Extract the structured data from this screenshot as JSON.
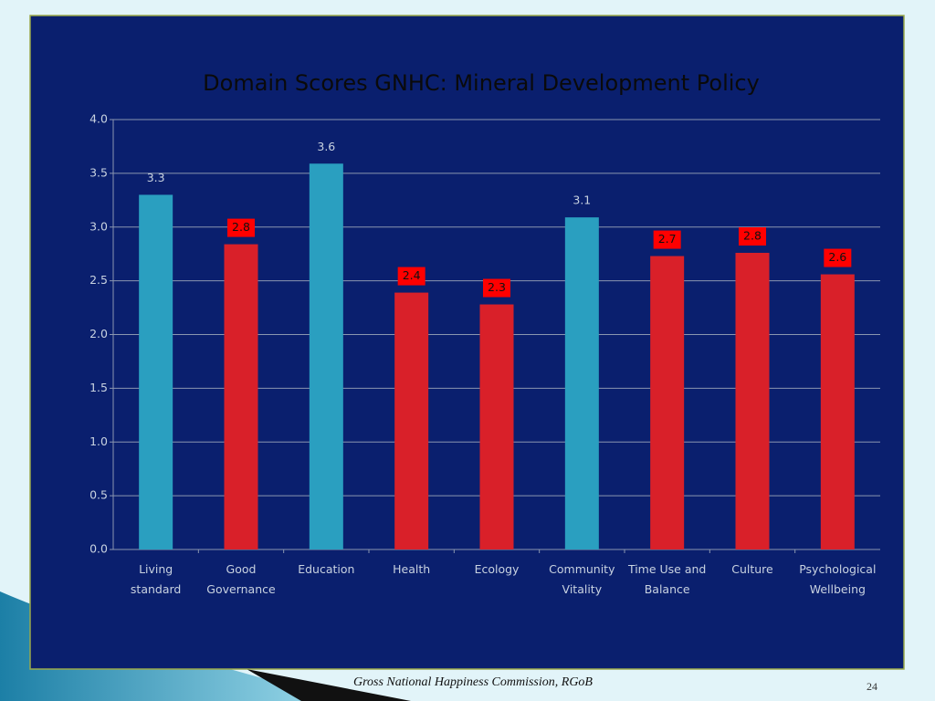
{
  "chart_data": {
    "type": "bar",
    "title": "Domain Scores GNHC: Mineral Development Policy",
    "categories": [
      "Living standard",
      "Good Governance",
      "Education",
      "Health",
      "Ecology",
      "Community Vitality",
      "Time Use and Balance",
      "Culture",
      "Psychological Wellbeing"
    ],
    "values": [
      3.3,
      2.84,
      3.59,
      2.39,
      2.28,
      3.09,
      2.73,
      2.76,
      2.56
    ],
    "value_labels": [
      "3.3",
      "2.8",
      "3.6",
      "2.4",
      "2.3",
      "3.1",
      "2.7",
      "2.8",
      "2.6"
    ],
    "colors": [
      "#2a9fc0",
      "#d92029",
      "#2a9fc0",
      "#d92029",
      "#d92029",
      "#2a9fc0",
      "#d92029",
      "#d92029",
      "#d92029"
    ],
    "highlight_color": "#d92029",
    "ylim": [
      0,
      4
    ],
    "yticks": [
      {
        "value": 0,
        "label": "0.0"
      },
      {
        "value": 0.5,
        "label": "0.5"
      },
      {
        "value": 1,
        "label": "1.0"
      },
      {
        "value": 1.5,
        "label": "1.5"
      },
      {
        "value": 2,
        "label": "2.0"
      },
      {
        "value": 2.5,
        "label": "2.5"
      },
      {
        "value": 3,
        "label": "3.0"
      },
      {
        "value": 3.5,
        "label": "3.5"
      },
      {
        "value": 4,
        "label": "4.0"
      }
    ],
    "grid": true
  },
  "footer": {
    "source": "Gross National Happiness Commission, RGoB",
    "page_number": "24"
  }
}
